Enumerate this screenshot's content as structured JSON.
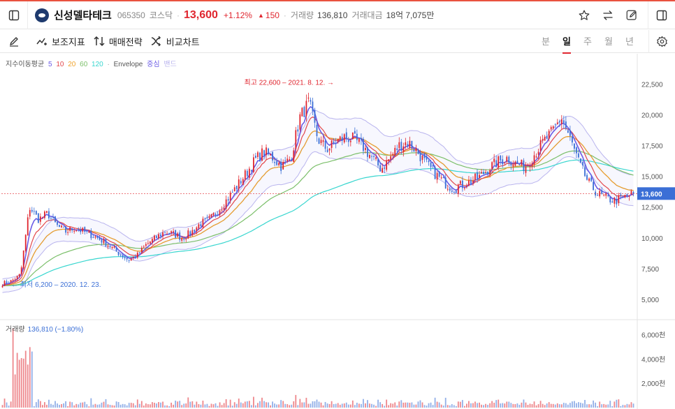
{
  "header": {
    "stock_name": "신성델타테크",
    "stock_code": "065350",
    "market": "코스닥",
    "separator": "·",
    "price": "13,600",
    "change_pct": "+1.12%",
    "change_abs": "150",
    "volume_label": "거래량",
    "volume_value": "136,810",
    "amount_label": "거래대금",
    "amount_value": "18억 7,075만",
    "colors": {
      "up": "#e0262f",
      "down": "#3b6fd6",
      "brand": "#1e3a6e"
    },
    "icons": [
      "sidebar-toggle-icon",
      "star-icon",
      "swap-icon",
      "edit-icon",
      "panel-icon"
    ]
  },
  "toolbar": {
    "aux_indicator": "보조지표",
    "trade_strategy": "매매전략",
    "compare_chart": "비교차트",
    "periods": [
      "분",
      "일",
      "주",
      "월",
      "년"
    ],
    "active_period": "일",
    "icons": [
      "pen-icon",
      "aux-indicator-icon",
      "strategy-icon",
      "compare-icon",
      "gear-icon"
    ]
  },
  "legend": {
    "ma_label": "지수이동평균",
    "ma_periods": [
      {
        "label": "5",
        "color": "#6b5be6"
      },
      {
        "label": "10",
        "color": "#e2474b"
      },
      {
        "label": "20",
        "color": "#f0a22b"
      },
      {
        "label": "60",
        "color": "#7bbf6a"
      },
      {
        "label": "120",
        "color": "#38d6cf"
      }
    ],
    "sep": "·",
    "envelope_label": "Envelope",
    "envelope_center": "중심",
    "envelope_band": "밴드"
  },
  "volume_legend": {
    "label": "거래량",
    "value": "136,810 (−1.80%)"
  },
  "chart_data": {
    "type": "candlestick",
    "price_axis": {
      "ticks": [
        5000,
        7500,
        10000,
        12500,
        15000,
        17500,
        20000,
        22500
      ],
      "tick_labels": [
        "5,000",
        "7,500",
        "10,000",
        "12,500",
        "15,000",
        "17,500",
        "20,000",
        "22,500"
      ],
      "ylim": [
        3700,
        24500
      ]
    },
    "current_price": 13600,
    "current_price_label": "13,600",
    "annotations": {
      "high": {
        "text": "최고 22,600 – 2021. 8. 12.",
        "value": 22600
      },
      "low": {
        "text": "최저 6,200 – 2020. 12. 23.",
        "value": 6200
      }
    },
    "close_path": [
      6300,
      6500,
      7000,
      12500,
      11500,
      12000,
      11000,
      10500,
      10800,
      10500,
      10200,
      9800,
      9300,
      8700,
      8200,
      8600,
      9500,
      10000,
      10500,
      10300,
      10000,
      10500,
      11200,
      11500,
      12300,
      13200,
      14200,
      15200,
      16300,
      17000,
      16500,
      15800,
      16500,
      19800,
      21000,
      18000,
      17200,
      17800,
      18200,
      18000,
      17400,
      16500,
      15600,
      16500,
      17500,
      17800,
      17000,
      16000,
      15200,
      14500,
      14000,
      14300,
      14600,
      15000,
      15700,
      16200,
      16500,
      16000,
      15800,
      16800,
      17800,
      18600,
      19800,
      18000,
      16000,
      14500,
      13600,
      13200,
      13000,
      13300,
      13600
    ],
    "volume_axis": {
      "ticks": [
        2000,
        4000,
        6000
      ],
      "tick_labels": [
        "2,000천",
        "4,000천",
        "6,000천"
      ],
      "ylim": [
        0,
        6600
      ]
    }
  }
}
